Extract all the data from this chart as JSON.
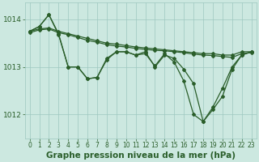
{
  "title": "Graphe pression niveau de la mer (hPa)",
  "background_color": "#cce8e0",
  "line_color": "#2a5e2a",
  "grid_color": "#9ec8c0",
  "xlim": [
    -0.5,
    23.5
  ],
  "ylim": [
    1011.5,
    1014.35
  ],
  "yticks": [
    1012,
    1013,
    1014
  ],
  "xticks": [
    0,
    1,
    2,
    3,
    4,
    5,
    6,
    7,
    8,
    9,
    10,
    11,
    12,
    13,
    14,
    15,
    16,
    17,
    18,
    19,
    20,
    21,
    22,
    23
  ],
  "series": [
    {
      "y": [
        1013.75,
        1013.8,
        1013.82,
        1013.75,
        1013.7,
        1013.65,
        1013.6,
        1013.55,
        1013.5,
        1013.48,
        1013.45,
        1013.42,
        1013.4,
        1013.38,
        1013.36,
        1013.34,
        1013.32,
        1013.3,
        1013.28,
        1013.28,
        1013.25,
        1013.25,
        1013.32,
        1013.32
      ]
    },
    {
      "y": [
        1013.72,
        1013.78,
        1013.8,
        1013.72,
        1013.68,
        1013.62,
        1013.56,
        1013.52,
        1013.47,
        1013.44,
        1013.42,
        1013.39,
        1013.37,
        1013.35,
        1013.34,
        1013.32,
        1013.3,
        1013.27,
        1013.25,
        1013.24,
        1013.22,
        1013.2,
        1013.28,
        1013.3
      ]
    },
    {
      "y": [
        1013.75,
        1013.85,
        1014.1,
        1013.7,
        1013.0,
        1013.0,
        1012.75,
        1012.78,
        1013.15,
        1013.32,
        1013.32,
        1013.25,
        1013.32,
        1013.0,
        1013.25,
        1013.18,
        1012.95,
        1012.65,
        1011.85,
        1012.1,
        1012.38,
        1012.95,
        1013.25,
        1013.32
      ]
    },
    {
      "y": [
        1013.75,
        1013.85,
        1014.1,
        1013.68,
        1013.0,
        1013.0,
        1012.75,
        1012.78,
        1013.18,
        1013.32,
        1013.32,
        1013.25,
        1013.28,
        1013.02,
        1013.28,
        1013.1,
        1012.7,
        1012.0,
        1011.85,
        1012.15,
        1012.55,
        1013.0,
        1013.25,
        1013.32
      ]
    }
  ],
  "marker": "D",
  "marker_size": 2.0,
  "line_width": 0.9,
  "title_fontsize": 7.5,
  "tick_fontsize": 5.5,
  "ytick_fontsize": 6.5
}
